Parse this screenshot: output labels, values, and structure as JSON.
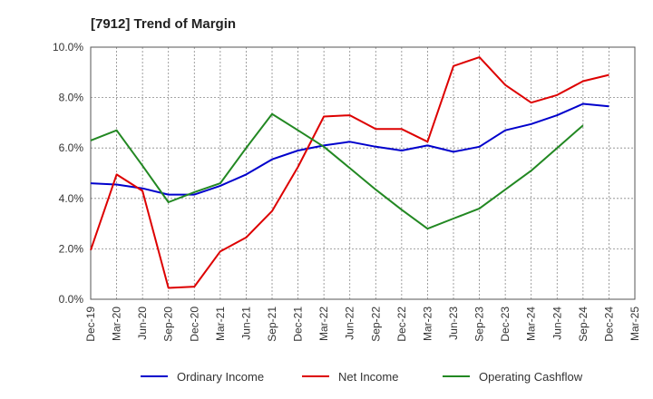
{
  "chart_data": {
    "type": "line",
    "title": "[7912]  Trend of Margin",
    "xlabel": "",
    "ylabel": "",
    "ylim": [
      0,
      10
    ],
    "y_ticks": [
      "0.0%",
      "2.0%",
      "4.0%",
      "6.0%",
      "8.0%",
      "10.0%"
    ],
    "y_tick_values": [
      0,
      2,
      4,
      6,
      8,
      10
    ],
    "grid": true,
    "legend_position": "bottom",
    "categories": [
      "Dec-19",
      "Mar-20",
      "Jun-20",
      "Sep-20",
      "Dec-20",
      "Mar-21",
      "Jun-21",
      "Sep-21",
      "Dec-21",
      "Mar-22",
      "Jun-22",
      "Sep-22",
      "Dec-22",
      "Mar-23",
      "Jun-23",
      "Sep-23",
      "Dec-23",
      "Mar-24",
      "Jun-24",
      "Sep-24",
      "Dec-24",
      "Mar-25"
    ],
    "series": [
      {
        "name": "Ordinary Income",
        "color": "#0000cc",
        "values": [
          4.6,
          4.55,
          4.4,
          4.15,
          4.15,
          4.5,
          4.95,
          5.55,
          5.9,
          6.1,
          6.25,
          6.05,
          5.9,
          6.1,
          5.85,
          6.05,
          6.7,
          6.95,
          7.3,
          7.75,
          7.65,
          null
        ]
      },
      {
        "name": "Net Income",
        "color": "#dd0000",
        "values": [
          1.95,
          4.95,
          4.3,
          0.45,
          0.5,
          1.9,
          2.45,
          3.5,
          5.25,
          7.25,
          7.3,
          6.75,
          6.75,
          6.25,
          9.25,
          9.6,
          8.5,
          7.8,
          8.1,
          8.65,
          8.9,
          null
        ]
      },
      {
        "name": "Operating Cashflow",
        "color": "#228822",
        "values": [
          6.3,
          6.7,
          5.3,
          3.85,
          4.25,
          4.6,
          6.0,
          7.35,
          6.7,
          6.05,
          5.2,
          4.35,
          3.55,
          2.8,
          3.2,
          3.6,
          4.35,
          5.1,
          6.0,
          6.9,
          null,
          null
        ]
      }
    ]
  }
}
